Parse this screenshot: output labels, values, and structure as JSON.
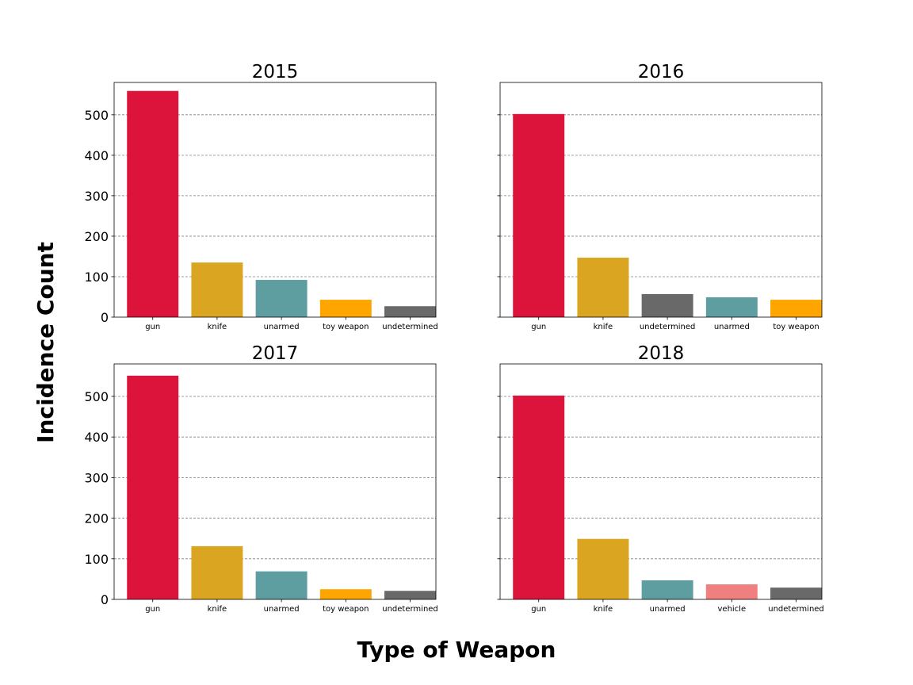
{
  "figure": {
    "xlabel": "Type of Weapon",
    "ylabel": "Incidence Count"
  },
  "colors": {
    "gun": "#dc143c",
    "knife": "#daa520",
    "unarmed": "#5f9ea0",
    "toy weapon": "#ffa500",
    "undetermined": "#696969",
    "vehicle": "#f08080",
    "grid": "#808080",
    "frame": "#000000"
  },
  "chart_data": [
    {
      "type": "bar",
      "title": "2015",
      "categories": [
        "gun",
        "knife",
        "unarmed",
        "toy weapon",
        "undetermined"
      ],
      "values": [
        559,
        135,
        92,
        43,
        27
      ],
      "ylim": [
        0,
        580
      ],
      "yticks": [
        0,
        100,
        200,
        300,
        400,
        500
      ],
      "grid": true,
      "show_ytick_labels": true
    },
    {
      "type": "bar",
      "title": "2016",
      "categories": [
        "gun",
        "knife",
        "undetermined",
        "unarmed",
        "toy weapon"
      ],
      "values": [
        502,
        147,
        57,
        49,
        43
      ],
      "ylim": [
        0,
        580
      ],
      "yticks": [
        0,
        100,
        200,
        300,
        400,
        500
      ],
      "grid": true,
      "show_ytick_labels": false
    },
    {
      "type": "bar",
      "title": "2017",
      "categories": [
        "gun",
        "knife",
        "unarmed",
        "toy weapon",
        "undetermined"
      ],
      "values": [
        551,
        131,
        69,
        25,
        21
      ],
      "ylim": [
        0,
        580
      ],
      "yticks": [
        0,
        100,
        200,
        300,
        400,
        500
      ],
      "grid": true,
      "show_ytick_labels": true
    },
    {
      "type": "bar",
      "title": "2018",
      "categories": [
        "gun",
        "knife",
        "unarmed",
        "vehicle",
        "undetermined"
      ],
      "values": [
        502,
        149,
        47,
        37,
        29
      ],
      "ylim": [
        0,
        580
      ],
      "yticks": [
        0,
        100,
        200,
        300,
        400,
        500
      ],
      "grid": true,
      "show_ytick_labels": false
    }
  ]
}
